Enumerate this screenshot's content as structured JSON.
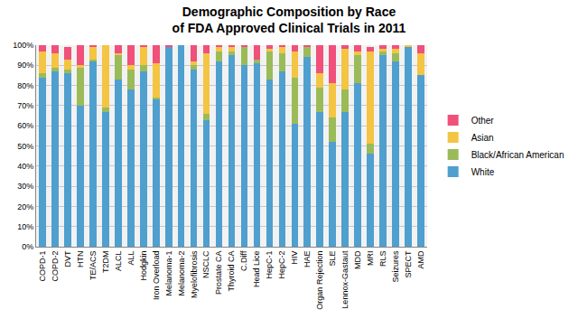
{
  "chart_data": {
    "type": "bar",
    "title": "Demographic Composition by Race\nof FDA Approved Clinical Trials in 2011",
    "stacked": true,
    "grid": true,
    "legend": "right",
    "categories": [
      "COPD-1",
      "COPD-2",
      "DVT",
      "HTN",
      "TE/ACS",
      "T2DM",
      "ALCL",
      "ALL",
      "Hodgkin",
      "Iron Overload",
      "Melanoma-1",
      "Melanoma-2",
      "Myelofibrosis",
      "NSCLC",
      "Prostate CA",
      "Thyroid CA",
      "C.Diff",
      "Head Lice",
      "HepC-1",
      "HepC-2",
      "HIV",
      "HAE",
      "Organ Rejection",
      "SLE",
      "Lennox-Gastaut",
      "MDD",
      "MRI",
      "RLS",
      "Seizures",
      "SPECT",
      "AMD"
    ],
    "series": [
      {
        "name": "White",
        "color": "#4f9fcf",
        "values": [
          84,
          87,
          86,
          70,
          92,
          67,
          83,
          78,
          87,
          73,
          99,
          100,
          88,
          63,
          92,
          95,
          90,
          91,
          83,
          87,
          61,
          94,
          67,
          52,
          67,
          81,
          46,
          95,
          92,
          99,
          85
        ]
      },
      {
        "name": "Black/African American",
        "color": "#9bbb59",
        "values": [
          2,
          2,
          2,
          19,
          1,
          2,
          12,
          10,
          3,
          1,
          0,
          0,
          2,
          3,
          5,
          2,
          9,
          2,
          14,
          9,
          23,
          5,
          12,
          12,
          11,
          14,
          5,
          2,
          4,
          0,
          0
        ]
      },
      {
        "name": "Asian",
        "color": "#f4c443",
        "values": [
          11,
          7,
          5,
          1,
          6,
          31,
          1,
          2,
          9,
          17,
          0,
          0,
          2,
          30,
          2,
          2,
          0,
          0,
          1,
          3,
          13,
          0,
          7,
          17,
          20,
          2,
          46,
          1,
          2,
          1,
          11
        ]
      },
      {
        "name": "Other",
        "color": "#f0507a",
        "values": [
          3,
          4,
          6,
          10,
          1,
          0,
          4,
          10,
          1,
          9,
          1,
          0,
          8,
          4,
          1,
          1,
          1,
          7,
          2,
          1,
          3,
          1,
          14,
          19,
          2,
          3,
          2,
          2,
          2,
          0,
          4
        ]
      }
    ],
    "ylim": [
      0,
      100
    ],
    "yticks": [
      {
        "value": 0,
        "label": "0%"
      },
      {
        "value": 10,
        "label": "10%"
      },
      {
        "value": 20,
        "label": "20%"
      },
      {
        "value": 30,
        "label": "30%"
      },
      {
        "value": 40,
        "label": "40%"
      },
      {
        "value": 50,
        "label": "50%"
      },
      {
        "value": 60,
        "label": "60%"
      },
      {
        "value": 70,
        "label": "70%"
      },
      {
        "value": 80,
        "label": "80%"
      },
      {
        "value": 90,
        "label": "90%"
      },
      {
        "value": 100,
        "label": "100%"
      }
    ]
  }
}
